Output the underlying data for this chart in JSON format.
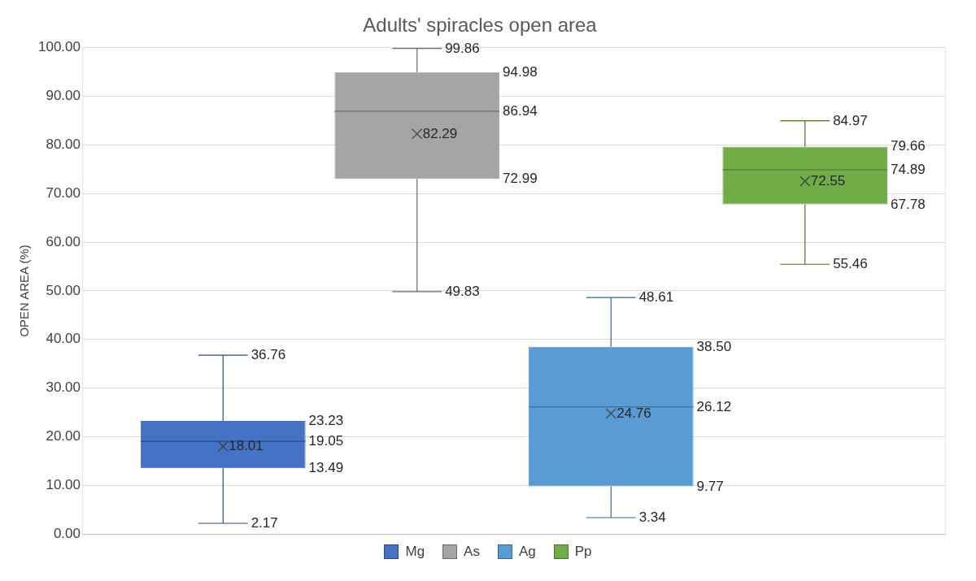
{
  "chart_data": {
    "type": "box",
    "title": "Adults' spiracles open area",
    "ylabel": "OPEN AREA (%)",
    "categories": [
      null
    ],
    "series": [
      {
        "name": "Mg",
        "color": "#4472c4",
        "boxes": [
          {
            "low": 2.17,
            "q1": 13.49,
            "median": 19.05,
            "q3": 23.23,
            "high": 36.76,
            "mean": 18.01
          }
        ]
      },
      {
        "name": "As",
        "color": "#a5a5a5",
        "boxes": [
          {
            "low": 49.83,
            "q1": 72.99,
            "median": 86.94,
            "q3": 94.98,
            "high": 99.86,
            "mean": 82.29
          }
        ]
      },
      {
        "name": "Ag",
        "color": "#5b9bd5",
        "boxes": [
          {
            "low": 3.34,
            "q1": 9.77,
            "median": 26.12,
            "q3": 38.5,
            "high": 48.61,
            "mean": 24.76
          }
        ]
      },
      {
        "name": "Pp",
        "color": "#70ad47",
        "boxes": [
          {
            "low": 55.46,
            "q1": 67.78,
            "median": 74.89,
            "q3": 79.66,
            "high": 84.97,
            "mean": 72.55
          }
        ]
      }
    ],
    "ylim": [
      0,
      100
    ],
    "yticks": [
      {
        "value": 0,
        "label": "0.00"
      },
      {
        "value": 10,
        "label": "10.00"
      },
      {
        "value": 20,
        "label": "20.00"
      },
      {
        "value": 30,
        "label": "30.00"
      },
      {
        "value": 40,
        "label": "40.00"
      },
      {
        "value": 50,
        "label": "50.00"
      },
      {
        "value": 60,
        "label": "60.00"
      },
      {
        "value": 70,
        "label": "70.00"
      },
      {
        "value": 80,
        "label": "80.00"
      },
      {
        "value": 90,
        "label": "90.00"
      },
      {
        "value": 100,
        "label": "100.00"
      }
    ],
    "annotations": [
      "36.76",
      "23.23",
      "19.05",
      "18.01",
      "13.49",
      "2.17",
      "99.86",
      "94.98",
      "86.94",
      "82.29",
      "72.99",
      "49.83",
      "48.61",
      "38.50",
      "26.12",
      "24.76",
      "9.77",
      "3.34",
      "84.97",
      "79.66",
      "74.89",
      "72.55",
      "67.78",
      "55.46"
    ],
    "grid": true,
    "legend": "bottom",
    "data_labels": true,
    "tick_labels": "y"
  }
}
